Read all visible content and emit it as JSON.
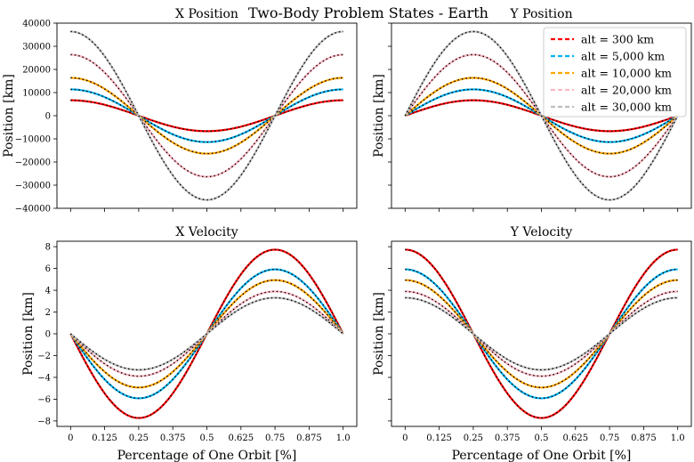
{
  "figure": {
    "suptitle": "Two-Body Problem States - Earth"
  },
  "legend": {
    "location": "top-right of Y Position",
    "entries": [
      {
        "label": "alt = 300 km",
        "color": "#ff0000"
      },
      {
        "label": "alt = 5,000 km",
        "color": "#00b0f0"
      },
      {
        "label": "alt = 10,000 km",
        "color": "#ffa500"
      },
      {
        "label": "alt = 20,000 km",
        "color": "#ffb6c1"
      },
      {
        "label": "alt = 30,000 km",
        "color": "#bdbdbd"
      }
    ]
  },
  "chart_data": [
    {
      "type": "line",
      "title": "X Position",
      "xlabel": "",
      "ylabel": "Position [km]",
      "xlim": [
        -0.05,
        1.05
      ],
      "ylim": [
        -40000,
        40000
      ],
      "yticks": [
        -40000,
        -30000,
        -20000,
        -10000,
        0,
        10000,
        20000,
        30000,
        40000
      ],
      "ytick_labels": [
        "−40000",
        "−30000",
        "−20000",
        "−10000",
        "0",
        "10000",
        "20000",
        "30000",
        "40000"
      ],
      "xticks": [
        0,
        0.125,
        0.25,
        0.375,
        0.5,
        0.625,
        0.75,
        0.875,
        1.0
      ],
      "xtick_labels": [],
      "function": "cos",
      "phase_cycles": 0,
      "series": [
        {
          "name": "alt = 300 km",
          "amplitude": 6678,
          "color": "#ff0000"
        },
        {
          "name": "alt = 5,000 km",
          "amplitude": 11378,
          "color": "#00b0f0"
        },
        {
          "name": "alt = 10,000 km",
          "amplitude": 16378,
          "color": "#ffa500"
        },
        {
          "name": "alt = 20,000 km",
          "amplitude": 26378,
          "color": "#ffb6c1"
        },
        {
          "name": "alt = 30,000 km",
          "amplitude": 36378,
          "color": "#bdbdbd"
        }
      ]
    },
    {
      "type": "line",
      "title": "Y Position",
      "xlabel": "",
      "ylabel": "Position [km]",
      "xlim": [
        -0.05,
        1.05
      ],
      "ylim": [
        -40000,
        40000
      ],
      "yticks": [
        -40000,
        -30000,
        -20000,
        -10000,
        0,
        10000,
        20000,
        30000,
        40000
      ],
      "ytick_labels": [],
      "xticks": [
        0,
        0.125,
        0.25,
        0.375,
        0.5,
        0.625,
        0.75,
        0.875,
        1.0
      ],
      "xtick_labels": [],
      "function": "sin",
      "phase_cycles": 0,
      "series": [
        {
          "name": "alt = 300 km",
          "amplitude": 6678,
          "color": "#ff0000"
        },
        {
          "name": "alt = 5,000 km",
          "amplitude": 11378,
          "color": "#00b0f0"
        },
        {
          "name": "alt = 10,000 km",
          "amplitude": 16378,
          "color": "#ffa500"
        },
        {
          "name": "alt = 20,000 km",
          "amplitude": 26378,
          "color": "#ffb6c1"
        },
        {
          "name": "alt = 30,000 km",
          "amplitude": 36378,
          "color": "#bdbdbd"
        }
      ]
    },
    {
      "type": "line",
      "title": "X Velocity",
      "xlabel": "Percentage of One Orbit [%]",
      "ylabel": "Position [km]",
      "xlim": [
        -0.05,
        1.05
      ],
      "ylim": [
        -8.5,
        8.5
      ],
      "yticks": [
        -8,
        -6,
        -4,
        -2,
        0,
        2,
        4,
        6,
        8
      ],
      "ytick_labels": [
        "−8",
        "−6",
        "−4",
        "−2",
        "0",
        "2",
        "4",
        "6",
        "8"
      ],
      "xticks": [
        0,
        0.125,
        0.25,
        0.375,
        0.5,
        0.625,
        0.75,
        0.875,
        1.0
      ],
      "xtick_labels": [
        "0",
        "0.125",
        "0.25",
        "0.375",
        "0.5",
        "0.625",
        "0.75",
        "0.875",
        "1.0"
      ],
      "function": "sin",
      "phase_cycles": 0,
      "sign": -1,
      "series": [
        {
          "name": "alt = 300 km",
          "amplitude": 7.73,
          "color": "#ff0000"
        },
        {
          "name": "alt = 5,000 km",
          "amplitude": 5.92,
          "color": "#00b0f0"
        },
        {
          "name": "alt = 10,000 km",
          "amplitude": 4.93,
          "color": "#ffa500"
        },
        {
          "name": "alt = 20,000 km",
          "amplitude": 3.89,
          "color": "#ffb6c1"
        },
        {
          "name": "alt = 30,000 km",
          "amplitude": 3.31,
          "color": "#bdbdbd"
        }
      ]
    },
    {
      "type": "line",
      "title": "Y Velocity",
      "xlabel": "Percentage of One Orbit [%]",
      "ylabel": "Position [km]",
      "xlim": [
        -0.05,
        1.05
      ],
      "ylim": [
        -8.5,
        8.5
      ],
      "yticks": [
        -8,
        -6,
        -4,
        -2,
        0,
        2,
        4,
        6,
        8
      ],
      "ytick_labels": [],
      "xticks": [
        0,
        0.125,
        0.25,
        0.375,
        0.5,
        0.625,
        0.75,
        0.875,
        1.0
      ],
      "xtick_labels": [
        "0",
        "0.125",
        "0.25",
        "0.375",
        "0.5",
        "0.625",
        "0.75",
        "0.875",
        "1.0"
      ],
      "function": "cos",
      "phase_cycles": 0,
      "sign": 1,
      "series": [
        {
          "name": "alt = 300 km",
          "amplitude": 7.73,
          "color": "#ff0000"
        },
        {
          "name": "alt = 5,000 km",
          "amplitude": 5.92,
          "color": "#00b0f0"
        },
        {
          "name": "alt = 10,000 km",
          "amplitude": 4.93,
          "color": "#ffa500"
        },
        {
          "name": "alt = 20,000 km",
          "amplitude": 3.89,
          "color": "#ffb6c1"
        },
        {
          "name": "alt = 30,000 km",
          "amplitude": 3.31,
          "color": "#bdbdbd"
        }
      ]
    }
  ]
}
